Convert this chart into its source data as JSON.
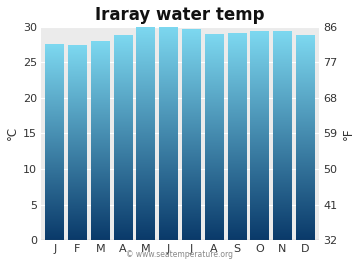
{
  "title": "Iraray water temp",
  "months": [
    "J",
    "F",
    "M",
    "A",
    "M",
    "J",
    "J",
    "A",
    "S",
    "O",
    "N",
    "D"
  ],
  "values": [
    27.5,
    27.3,
    27.8,
    28.7,
    29.8,
    29.9,
    29.5,
    28.8,
    29.0,
    29.2,
    29.3,
    28.7
  ],
  "ylim_c": [
    0,
    30
  ],
  "yticks_c": [
    0,
    5,
    10,
    15,
    20,
    25,
    30
  ],
  "yticks_f": [
    32,
    41,
    50,
    59,
    68,
    77,
    86
  ],
  "ylabel_left": "°C",
  "ylabel_right": "°F",
  "color_top": "#7DD8F0",
  "color_bottom": "#0A3A6A",
  "plot_bg": "#EBEBEB",
  "fig_bg": "#FFFFFF",
  "watermark": "© www.seatemperature.org",
  "title_fontsize": 12,
  "tick_fontsize": 8,
  "label_fontsize": 8.5,
  "bar_width": 0.82
}
